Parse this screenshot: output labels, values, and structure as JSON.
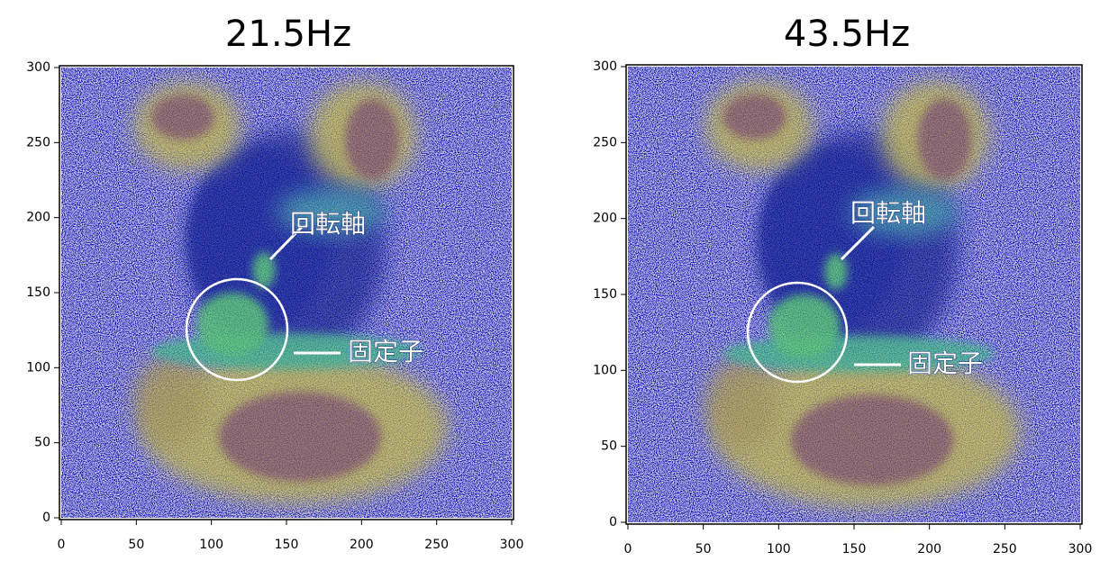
{
  "chart_data": [
    {
      "type": "heatmap",
      "title": "21.5Hz",
      "xlim": [
        0,
        300
      ],
      "ylim": [
        0,
        300
      ],
      "xticks": [
        0,
        50,
        100,
        150,
        200,
        250,
        300
      ],
      "yticks": [
        0,
        50,
        100,
        150,
        200,
        250,
        300
      ],
      "annotations": [
        "回転軸",
        "固定子"
      ]
    },
    {
      "type": "heatmap",
      "title": "43.5Hz",
      "xlim": [
        0,
        300
      ],
      "ylim": [
        0,
        300
      ],
      "xticks": [
        0,
        50,
        100,
        150,
        200,
        250,
        300
      ],
      "yticks": [
        0,
        50,
        100,
        150,
        200,
        250,
        300
      ],
      "annotations": [
        "回転軸",
        "固定子"
      ]
    }
  ]
}
